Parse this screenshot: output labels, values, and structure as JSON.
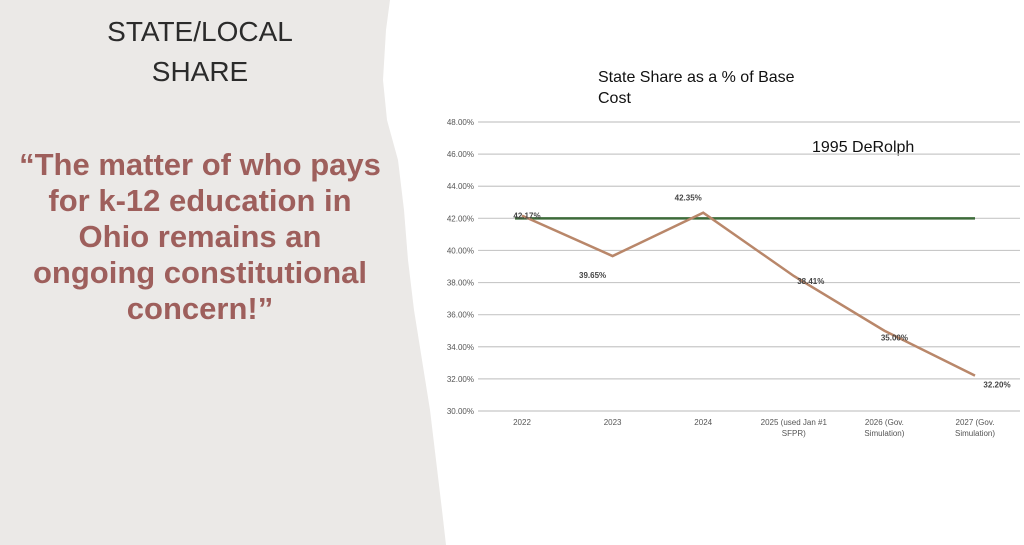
{
  "slide": {
    "title_line1": "STATE/LOCAL",
    "title_line2": "SHARE",
    "quote": "“The matter of who pays for k-12 education in Ohio remains an ongoing constitutional concern!”"
  },
  "colors": {
    "left_panel": "#ebe9e7",
    "quote": "#9e5f5c",
    "series": "#b9876a",
    "reference": "#3d6b3a",
    "grid": "#c8c8c8"
  },
  "chart_data": {
    "type": "line",
    "title": "State Share as a % of Base Cost",
    "categories": [
      "2022",
      "2023",
      "2024",
      "2025 (used Jan #1 SFPR)",
      "2026 (Gov. Simulation)",
      "2027 (Gov. Simulation)"
    ],
    "category_lines": [
      [
        "2022"
      ],
      [
        "2023"
      ],
      [
        "2024"
      ],
      [
        "2025 (used Jan #1",
        "SFPR)"
      ],
      [
        "2026 (Gov.",
        "Simulation)"
      ],
      [
        "2027 (Gov.",
        "Simulation)"
      ]
    ],
    "series": [
      {
        "name": "State Share",
        "values": [
          42.17,
          39.65,
          42.35,
          38.41,
          35.0,
          32.2
        ],
        "labels": [
          "42.17%",
          "39.65%",
          "42.35%",
          "38.41%",
          "35.00%",
          "32.20%"
        ]
      }
    ],
    "reference_line": {
      "label": "1995 DeRolph",
      "value": 42.0
    },
    "ylim": [
      30,
      48
    ],
    "yticks": [
      48,
      46,
      44,
      42,
      40,
      38,
      36,
      34,
      32,
      30
    ],
    "ytick_labels": [
      "48.00%",
      "46.00%",
      "44.00%",
      "42.00%",
      "40.00%",
      "38.00%",
      "36.00%",
      "34.00%",
      "32.00%",
      "30.00%"
    ],
    "grid": true,
    "legend": "none"
  }
}
